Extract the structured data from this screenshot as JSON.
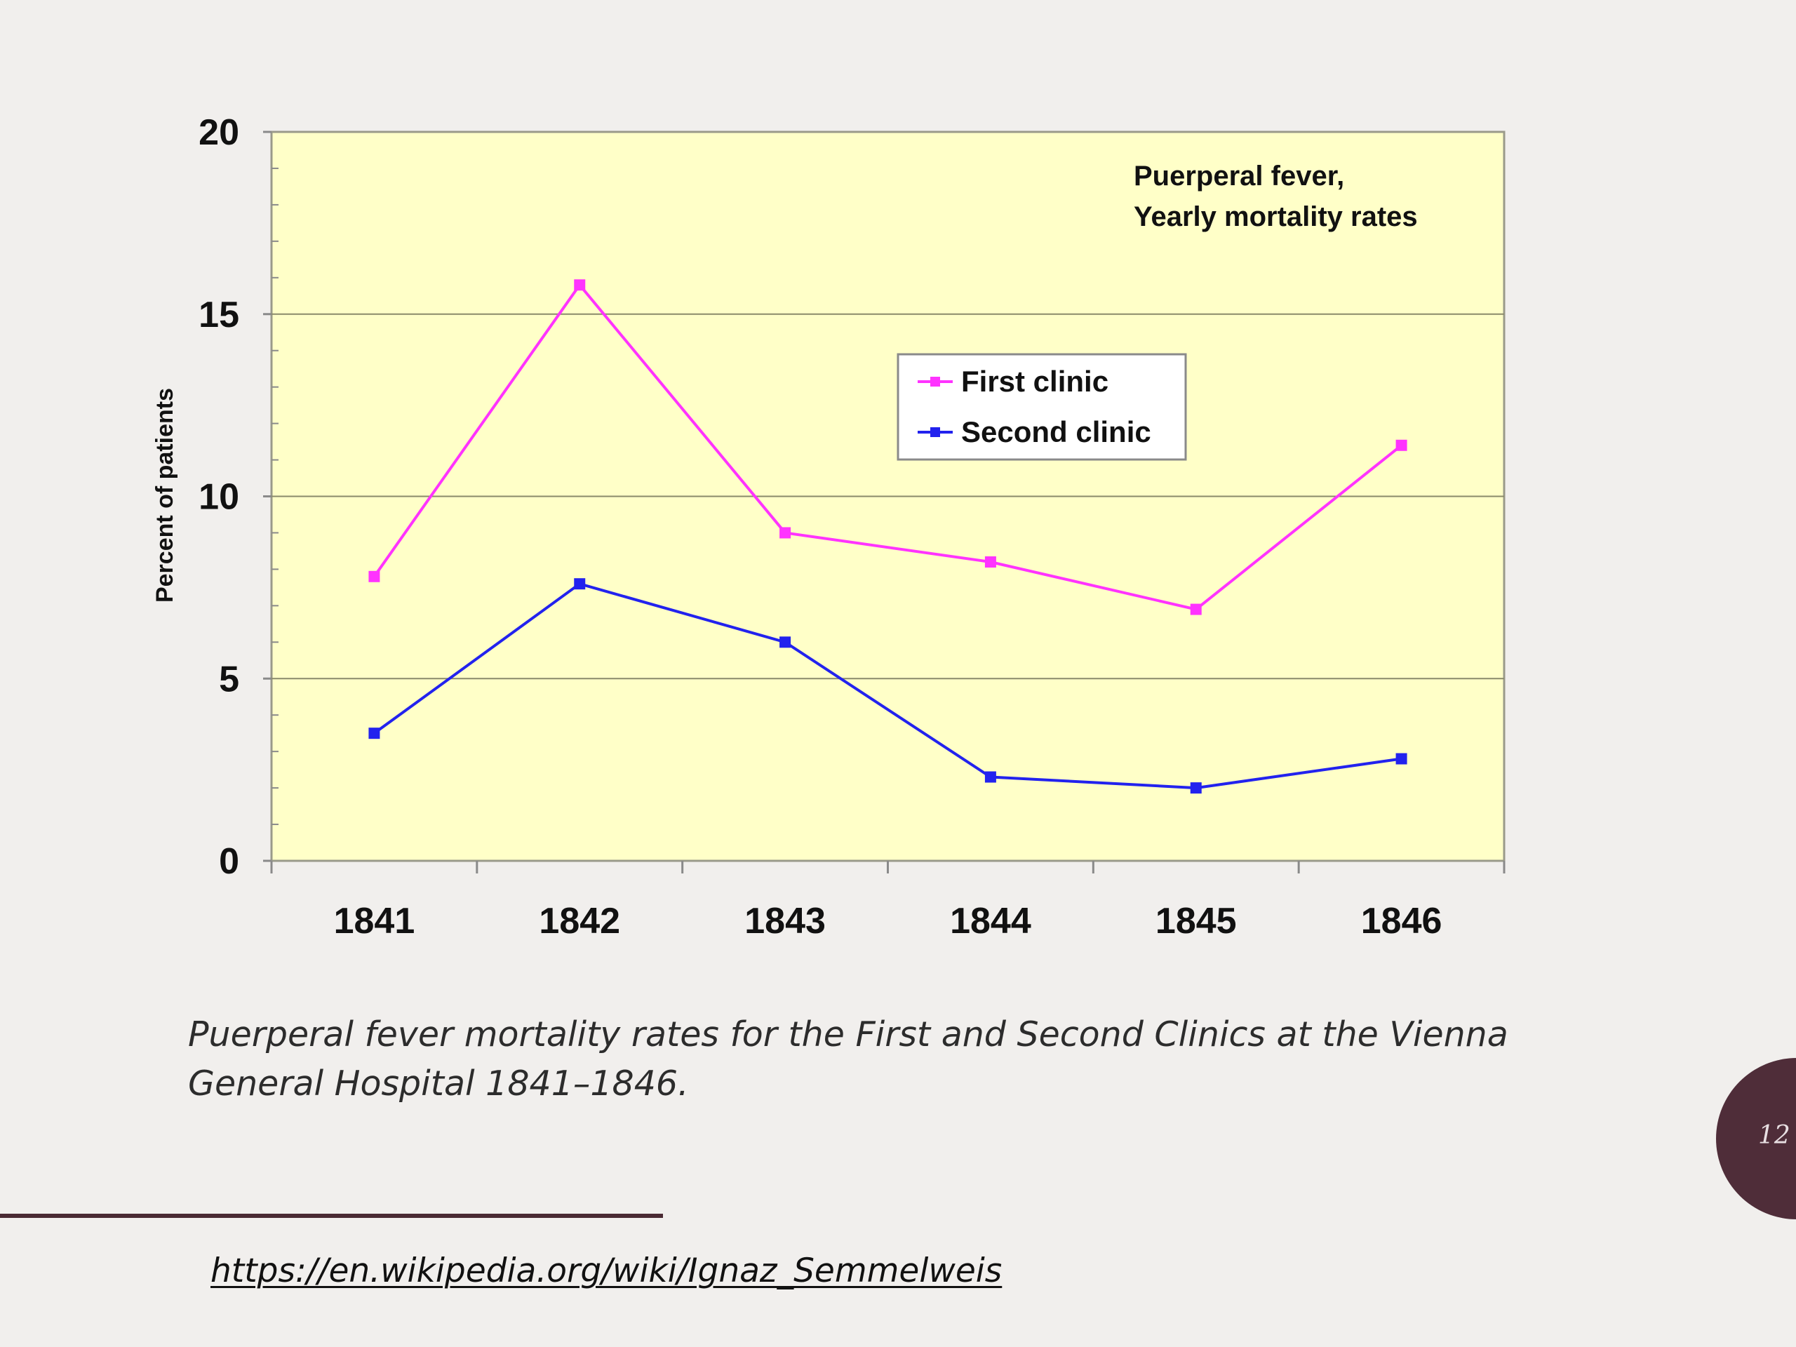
{
  "chart_data": {
    "type": "line",
    "title": "Puerperal fever,",
    "subtitle": "Yearly mortality rates",
    "xlabel": "",
    "ylabel": "Percent of patients",
    "categories": [
      "1841",
      "1842",
      "1843",
      "1844",
      "1845",
      "1846"
    ],
    "ylim": [
      0,
      20
    ],
    "yticks": [
      "0",
      "5",
      "10",
      "15",
      "20"
    ],
    "grid": true,
    "legend_position": "upper-center-right",
    "plot_background": "#ffffc8",
    "series": [
      {
        "name": "First clinic",
        "color": "#ff33ff",
        "values": [
          7.8,
          15.8,
          9.0,
          8.2,
          6.9,
          11.4
        ]
      },
      {
        "name": "Second clinic",
        "color": "#2222ee",
        "values": [
          3.5,
          7.6,
          6.0,
          2.3,
          2.0,
          2.8
        ]
      }
    ]
  },
  "caption": "Puerperal fever mortality rates for the First and Second Clinics at the Vienna General Hospital 1841–1846.",
  "source_link": "https://en.wikipedia.org/wiki/Ignaz_Semmelweis",
  "page_number": "12",
  "colors": {
    "background": "#f1efed",
    "accent": "#4f2d39"
  }
}
